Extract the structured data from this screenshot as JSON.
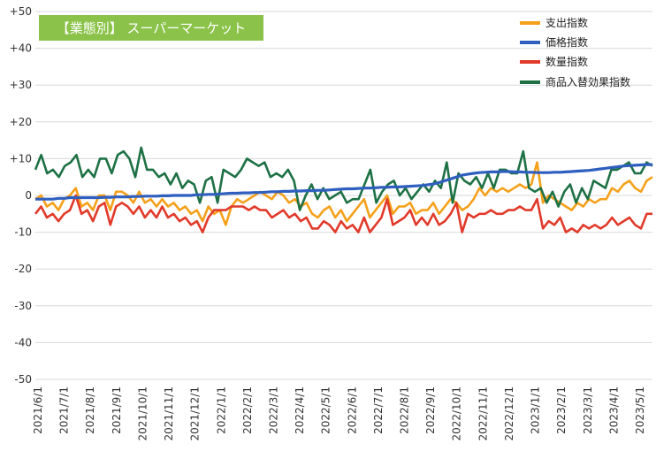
{
  "chart_data": {
    "type": "line",
    "title": "【業態別】 スーパーマーケット",
    "ylim": [
      -50,
      50
    ],
    "y_ticks": [
      "+50",
      "+40",
      "+30",
      "+20",
      "+10",
      "0",
      "-10",
      "-20",
      "-30",
      "-40",
      "-50"
    ],
    "x_ticks": [
      "2021/6/1",
      "2021/7/1",
      "2021/8/1",
      "2021/9/1",
      "2021/10/1",
      "2021/11/1",
      "2021/12/1",
      "2022/1/1",
      "2022/2/1",
      "2022/3/1",
      "2022/4/1",
      "2022/5/1",
      "2022/6/1",
      "2022/7/1",
      "2022/8/1",
      "2022/9/1",
      "2022/10/1",
      "2022/11/1",
      "2022/12/1",
      "2023/1/1",
      "2023/2/1",
      "2023/3/1",
      "2023/4/1",
      "2023/5/1"
    ],
    "grid": true,
    "legend_position": "top-right",
    "title_color": "#8bc34a",
    "series": [
      {
        "name": "支出指数",
        "color": "#f5a01a",
        "values": [
          -1,
          0,
          -3,
          -2,
          -4,
          -1,
          0,
          2,
          -3,
          -2,
          -4,
          0,
          0,
          -4,
          1,
          1,
          0,
          -2,
          1,
          -2,
          -1,
          -3,
          -1,
          -3,
          -2,
          -4,
          -3,
          -5,
          -4,
          -7,
          -3,
          -5,
          -4,
          -8,
          -3,
          -1,
          -2,
          -1,
          0,
          1,
          0,
          -1,
          1,
          0,
          -2,
          -1,
          -3,
          -2,
          -5,
          -6,
          -4,
          -3,
          -6,
          -4,
          -7,
          -5,
          -3,
          -1,
          -6,
          -4,
          -2,
          0,
          -5,
          -3,
          -3,
          -2,
          -5,
          -4,
          -4,
          -2,
          -5,
          -3,
          -1,
          -2,
          -4,
          -3,
          -1,
          2,
          0,
          2,
          1,
          2,
          1,
          2,
          3,
          2,
          3,
          9,
          -2,
          0,
          -1,
          -2,
          -3,
          -4,
          -2,
          -3,
          -1,
          -2,
          -1,
          -1,
          2,
          1,
          3,
          4,
          2,
          1,
          4,
          5
        ]
      },
      {
        "name": "価格指数",
        "color": "#2e5fbf",
        "values": [
          -1,
          -1,
          -1,
          -1,
          -0.8,
          -0.8,
          -0.6,
          -0.6,
          -0.6,
          -0.6,
          -0.6,
          -0.6,
          -0.5,
          -0.5,
          -0.4,
          -0.4,
          -0.4,
          -0.3,
          -0.3,
          -0.2,
          -0.2,
          -0.2,
          -0.1,
          -0.1,
          0,
          0,
          0,
          0,
          0.2,
          0.2,
          0.3,
          0.3,
          0.4,
          0.5,
          0.6,
          0.6,
          0.7,
          0.7,
          0.8,
          0.8,
          0.9,
          1,
          1,
          1.1,
          1.1,
          1.2,
          1.2,
          1.3,
          1.3,
          1.4,
          1.4,
          1.5,
          1.6,
          1.7,
          1.8,
          1.8,
          1.9,
          2,
          2,
          2.1,
          2.2,
          2.2,
          2.3,
          2.3,
          2.4,
          2.5,
          2.6,
          2.7,
          2.9,
          3.1,
          3.5,
          4,
          4.5,
          5,
          5.5,
          5.8,
          6,
          6.2,
          6.3,
          6.4,
          6.4,
          6.5,
          6.5,
          6.4,
          6.4,
          6.3,
          6.3,
          6.2,
          6.2,
          6.2,
          6.3,
          6.3,
          6.4,
          6.5,
          6.6,
          6.7,
          6.8,
          7,
          7.2,
          7.4,
          7.6,
          7.8,
          8,
          8.1,
          8.2,
          8.3,
          8.4,
          8.4
        ]
      },
      {
        "name": "数量指数",
        "color": "#e13a2a",
        "values": [
          -5,
          -3,
          -6,
          -5,
          -7,
          -5,
          -4,
          0,
          -5,
          -4,
          -7,
          -3,
          -2,
          -8,
          -3,
          -2,
          -3,
          -5,
          -3,
          -6,
          -4,
          -6,
          -3,
          -6,
          -5,
          -7,
          -6,
          -8,
          -7,
          -10,
          -6,
          -4,
          -4,
          -4,
          -3,
          -3,
          -3,
          -4,
          -3,
          -4,
          -4,
          -6,
          -5,
          -4,
          -6,
          -5,
          -7,
          -6,
          -9,
          -9,
          -7,
          -8,
          -10,
          -7,
          -9,
          -8,
          -10,
          -6,
          -10,
          -8,
          -6,
          -1,
          -8,
          -7,
          -6,
          -4,
          -8,
          -6,
          -8,
          -5,
          -8,
          -7,
          -5,
          -2,
          -10,
          -5,
          -6,
          -5,
          -5,
          -4,
          -5,
          -5,
          -4,
          -4,
          -3,
          -4,
          -4,
          -1,
          -9,
          -7,
          -8,
          -6,
          -10,
          -9,
          -10,
          -8,
          -9,
          -8,
          -9,
          -8,
          -6,
          -8,
          -7,
          -6,
          -8,
          -9,
          -5,
          -5
        ]
      },
      {
        "name": "商品入替効果指数",
        "color": "#1e7145",
        "values": [
          7,
          11,
          6,
          7,
          5,
          8,
          9,
          11,
          5,
          7,
          5,
          10,
          10,
          6,
          11,
          12,
          10,
          5,
          13,
          7,
          7,
          5,
          6,
          3,
          6,
          2,
          4,
          3,
          -2,
          4,
          5,
          -2,
          7,
          6,
          5,
          7,
          10,
          9,
          8,
          9,
          5,
          6,
          5,
          7,
          4,
          -4,
          0,
          3,
          -1,
          2,
          -1,
          0,
          1,
          -2,
          -1,
          -1,
          3,
          7,
          -2,
          1,
          3,
          4,
          0,
          2,
          -1,
          1,
          3,
          1,
          4,
          2,
          9,
          -2,
          6,
          4,
          3,
          5,
          2,
          6,
          2,
          7,
          7,
          6,
          6,
          12,
          2,
          1,
          2,
          -2,
          1,
          -3,
          1,
          3,
          -2,
          2,
          -1,
          4,
          3,
          2,
          7,
          7,
          8,
          9,
          6,
          6,
          9,
          8
        ]
      }
    ]
  }
}
